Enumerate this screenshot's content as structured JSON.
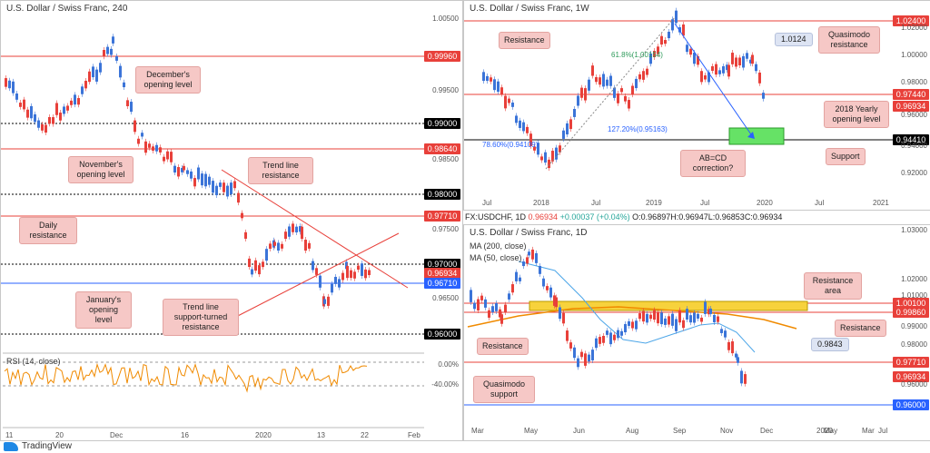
{
  "panels": {
    "p1": {
      "title": "U.S. Dollar / Swiss Franc, 240",
      "yticks": [
        "1.00500",
        "0.99500",
        "0.98500",
        "0.97500",
        "0.96500"
      ],
      "xticks": [
        "11",
        "20",
        "Dec",
        "16",
        "2020",
        "13",
        "22",
        "Feb"
      ],
      "tags": [
        {
          "text": "0.99960",
          "color": "#e8403a"
        },
        {
          "text": "0.99000",
          "color": "#000000"
        },
        {
          "text": "0.98640",
          "color": "#e8403a"
        },
        {
          "text": "0.98000",
          "color": "#000000"
        },
        {
          "text": "0.97710",
          "color": "#e8403a"
        },
        {
          "text": "0.97000",
          "color": "#000000"
        },
        {
          "text": "0.96934",
          "color": "#e8403a"
        },
        {
          "text": "0.96710",
          "color": "#2962ff"
        },
        {
          "text": "0.96000",
          "color": "#000000"
        }
      ],
      "callouts": [
        "December's opening level",
        "November's opening level",
        "Trend line resistance",
        "Daily resistance",
        "January's opening level",
        "Trend line support-turned resistance"
      ],
      "rsi": {
        "label": "RSI (14, close)",
        "ticks": [
          "0.00%",
          "-40.00%"
        ]
      }
    },
    "p2": {
      "title": "U.S. Dollar / Swiss Franc, 1W",
      "yticks": [
        "1.02000",
        "1.00000",
        "0.98000",
        "0.96000",
        "0.94000",
        "0.92000"
      ],
      "xticks": [
        "Jul",
        "2018",
        "Jul",
        "2019",
        "Jul",
        "2020",
        "Jul",
        "2021"
      ],
      "tags": [
        {
          "text": "1.02400",
          "color": "#e8403a"
        },
        {
          "text": "0.97440",
          "color": "#e8403a"
        },
        {
          "text": "0.96934",
          "color": "#e8403a"
        },
        {
          "text": "0.94410",
          "color": "#000000"
        }
      ],
      "callouts": [
        "Resistance",
        "Quasimodo resistance",
        "2018 Yearly opening level",
        "AB=CD correction?",
        "Support"
      ],
      "fib": [
        "61.8%(1.00154)",
        "127.20%(0.95163)",
        "78.60%(0.94109)"
      ],
      "box": "1.0124"
    },
    "p3": {
      "title": "U.S. Dollar / Swiss Franc, 1D",
      "ma": [
        "MA (200, close)",
        "MA (50, close)"
      ],
      "yticks": [
        "1.03000",
        "1.02000",
        "1.01000",
        "0.99000",
        "0.98000",
        "0.96000"
      ],
      "xticks": [
        "Mar",
        "May",
        "Jun",
        "Aug",
        "Sep",
        "Nov",
        "Dec",
        "2020",
        "Mar",
        "May",
        "Jul"
      ],
      "tags": [
        {
          "text": "1.00100",
          "color": "#e8403a"
        },
        {
          "text": "0.99860",
          "color": "#e8403a"
        },
        {
          "text": "0.97710",
          "color": "#e8403a"
        },
        {
          "text": "0.96934",
          "color": "#e8403a"
        },
        {
          "text": "0.96000",
          "color": "#2962ff"
        }
      ],
      "callouts": [
        "Resistance area",
        "Resistance",
        "Resistance",
        "Quasimodo support"
      ],
      "box": "0.9843"
    }
  },
  "infobar": {
    "symbol": "FX:USDCHF, 1D",
    "last": "0.96934",
    "change": "+0.00037 (+0.04%)",
    "o": "O:0.96897",
    "h": "H:0.96947",
    "l": "L:0.96853",
    "c": "C:0.96934"
  },
  "brand": "TradingView",
  "chart_data": [
    {
      "type": "line",
      "title": "U.S. Dollar / Swiss Franc, 240",
      "levels": [
        0.9996,
        0.99,
        0.9864,
        0.98,
        0.9771,
        0.97,
        0.96934,
        0.9671,
        0.96
      ],
      "last": 0.96934
    },
    {
      "type": "line",
      "title": "U.S. Dollar / Swiss Franc, 1W",
      "levels": [
        1.024,
        1.0124,
        0.9744,
        0.96934,
        0.9441
      ],
      "last": 0.96934
    },
    {
      "type": "line",
      "title": "U.S. Dollar / Swiss Franc, 1D",
      "levels": [
        1.001,
        0.9986,
        0.9843,
        0.9771,
        0.96934,
        0.96
      ],
      "last": 0.96934
    }
  ]
}
